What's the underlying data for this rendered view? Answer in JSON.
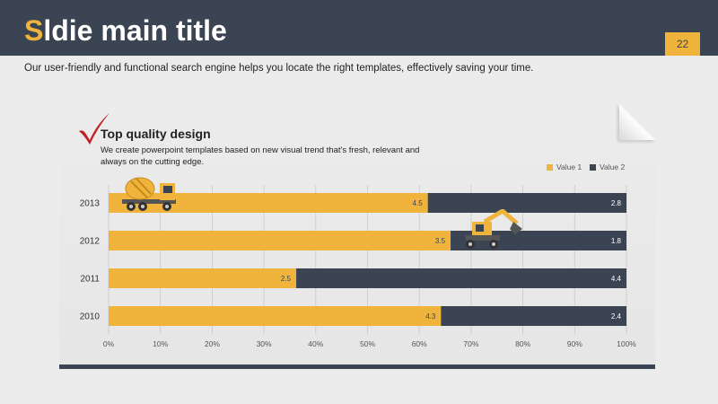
{
  "header": {
    "title_first_letter": "S",
    "title_rest": "ldie main title",
    "page_number": "22",
    "bar_color": "#3b4453",
    "accent_color": "#f0b43d"
  },
  "subtitle": "Our user-friendly and functional search engine helps you locate the right templates, effectively saving your time.",
  "card": {
    "icon": "checkmark-icon",
    "heading": "Top quality design",
    "text": "We create powerpoint templates based on new visual trend that's fresh, relevant and always on the cutting edge."
  },
  "decorations": [
    "cement-mixer-truck-icon",
    "excavator-icon"
  ],
  "chart_data": {
    "type": "bar",
    "orientation": "horizontal",
    "stacked": true,
    "normalized": true,
    "categories": [
      "2013",
      "2012",
      "2011",
      "2010"
    ],
    "series": [
      {
        "name": "Value 1",
        "values": [
          4.5,
          3.5,
          2.5,
          4.3
        ],
        "color": "#f0b43d"
      },
      {
        "name": "Value 2",
        "values": [
          2.8,
          1.8,
          4.4,
          2.4
        ],
        "color": "#3b4453"
      }
    ],
    "xticks": [
      "0%",
      "10%",
      "20%",
      "30%",
      "40%",
      "50%",
      "60%",
      "70%",
      "80%",
      "90%",
      "100%"
    ],
    "xlim": [
      0,
      100
    ],
    "grid": true,
    "legend_position": "top-right"
  }
}
